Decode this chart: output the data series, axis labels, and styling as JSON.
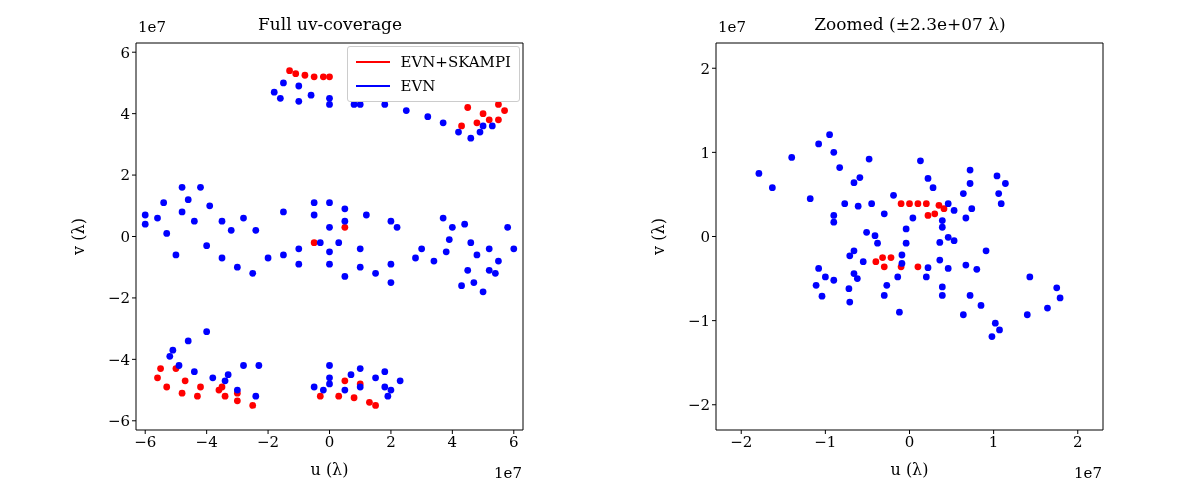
{
  "chart_data": [
    {
      "type": "scatter",
      "title": "Full uv-coverage",
      "xlabel": "u (λ)",
      "ylabel": "v (λ)",
      "annotations": [
        "1e7",
        "1e7"
      ],
      "legend": "top right",
      "marker": "circle",
      "xlim": [
        -6.3,
        6.3
      ],
      "ylim": [
        -6.3,
        6.3
      ],
      "xticks": [
        {
          "value": -6,
          "label": "−6"
        },
        {
          "value": -4,
          "label": "−4"
        },
        {
          "value": -2,
          "label": "−2"
        },
        0,
        2,
        4,
        6
      ],
      "yticks": [
        {
          "value": -6,
          "label": "−6"
        },
        {
          "value": -4,
          "label": "−4"
        },
        {
          "value": -2,
          "label": "−2"
        },
        0,
        2,
        4,
        6
      ],
      "series": [
        {
          "name": "EVN+SKAMPI",
          "color": "#ff0000",
          "x": [
            -1.3,
            -1.1,
            -0.8,
            -0.5,
            -0.2,
            0,
            4.5,
            5.0,
            4.8,
            4.3,
            5.5,
            5.7,
            5.5,
            5.2,
            -5.5,
            -5.6,
            -5.3,
            -4.8,
            -4.3,
            -5.0,
            -4.7,
            -4.2,
            -3.6,
            -3.0,
            -3.5,
            -3.4,
            -3.0,
            -2.5,
            -0.3,
            0.3,
            0.8,
            1.3,
            1.5,
            0.5,
            1.0,
            -0.5,
            0.5
          ],
          "values": [
            5.4,
            5.3,
            5.25,
            5.2,
            5.2,
            5.2,
            4.2,
            4.0,
            3.7,
            3.6,
            4.3,
            4.1,
            3.8,
            3.8,
            -4.3,
            -4.6,
            -4.9,
            -5.1,
            -5.2,
            -4.3,
            -4.7,
            -4.9,
            -5.0,
            -5.1,
            -4.9,
            -5.2,
            -5.35,
            -5.5,
            -5.2,
            -5.2,
            -5.25,
            -5.4,
            -5.5,
            -4.7,
            -4.8,
            -0.2,
            0.3
          ]
        },
        {
          "name": "EVN",
          "color": "#0000ff",
          "x": [
            -1.8,
            -1.6,
            -1.0,
            0,
            1.0,
            -1.5,
            -1.0,
            -0.6,
            0,
            0.8,
            1.8,
            2.5,
            3.2,
            3.7,
            4.2,
            4.6,
            4.9,
            5.3,
            5.0,
            -6,
            -6,
            -5.4,
            -5.6,
            -5.3,
            -5.0,
            -4.8,
            -4.6,
            -4.8,
            -4.4,
            -4.2,
            -3.9,
            -4.0,
            -3.5,
            -3.5,
            -3.2,
            -2.8,
            -2.4,
            -3,
            -2.5,
            -1.5,
            -0.5,
            0.5,
            1.2,
            2.0,
            2.2,
            -0.5,
            0,
            0.5,
            -0.3,
            0.3,
            0,
            0,
            -1.5,
            -2,
            -1.0,
            0,
            1.0,
            2,
            2.8,
            3,
            -1,
            1,
            0.5,
            1.5,
            2.0,
            3.4,
            3.8,
            3.7,
            4.0,
            3.9,
            4.4,
            4.6,
            4.5,
            4.8,
            4.7,
            4.3,
            5.2,
            5.5,
            5.4,
            5.8,
            6.0,
            5.0,
            5.2,
            -4.0,
            -4.6,
            -5.1,
            -5.2,
            -4.9,
            -4.4,
            -3.8,
            -2.3,
            -2.8,
            -3.3,
            -3.4,
            -3.0,
            -2.4,
            0,
            1,
            1.8,
            2.3,
            1.8,
            -0.5,
            0,
            1,
            0,
            0.7,
            1.5,
            2.0,
            1.9,
            -0.2,
            0.5
          ],
          "values": [
            4.7,
            4.5,
            4.4,
            4.3,
            4.3,
            5.0,
            4.9,
            4.6,
            4.5,
            4.3,
            4.3,
            4.1,
            3.9,
            3.7,
            3.4,
            3.2,
            3.4,
            3.6,
            3.6,
            0.7,
            0.4,
            1.1,
            0.6,
            0.1,
            -0.6,
            1.6,
            1.2,
            0.8,
            0.5,
            1.6,
            1.0,
            -0.3,
            -0.7,
            0.5,
            0.2,
            0.6,
            0.2,
            -1.0,
            -1.2,
            0.8,
            0.7,
            0.5,
            0.7,
            0.5,
            0.3,
            1.1,
            1.1,
            0.9,
            -0.2,
            -0.2,
            0.3,
            -0.5,
            -0.6,
            -0.7,
            -0.9,
            -0.9,
            -1.0,
            -0.9,
            -0.7,
            -0.4,
            -0.4,
            -0.4,
            -1.3,
            -1.2,
            -1.5,
            -0.8,
            -0.5,
            0.6,
            0.3,
            -0.1,
            0.4,
            -0.2,
            -1.1,
            -0.6,
            -1.5,
            -1.6,
            -0.4,
            -0.8,
            -1.2,
            0.3,
            -0.4,
            -1.8,
            -1.1,
            -3.1,
            -3.4,
            -3.7,
            -3.9,
            -4.2,
            -4.4,
            -4.6,
            -4.2,
            -4.2,
            -4.5,
            -4.7,
            -5.0,
            -5.2,
            -4.2,
            -4.3,
            -4.4,
            -4.7,
            -4.9,
            -4.9,
            -4.8,
            -4.9,
            -4.6,
            -4.5,
            -4.6,
            -5.0,
            -5.2,
            -5.0,
            -5.0
          ]
        }
      ]
    },
    {
      "type": "scatter",
      "title": "Zoomed (±2.3e+07 λ)",
      "xlabel": "u (λ)",
      "ylabel": "v (λ)",
      "annotations": [
        "1e7",
        "1e7"
      ],
      "marker": "circle",
      "xlim": [
        -2.3,
        2.3
      ],
      "ylim": [
        -2.3,
        2.3
      ],
      "xticks": [
        {
          "value": -2,
          "label": "−2"
        },
        {
          "value": -1,
          "label": "−1"
        },
        0,
        1,
        2
      ],
      "yticks": [
        {
          "value": -2,
          "label": "−2"
        },
        {
          "value": -1,
          "label": "−1"
        },
        0,
        1,
        2
      ],
      "series": [
        {
          "color": "#ff0000",
          "x": [
            -0.1,
            0,
            0.1,
            0.2,
            0.22,
            0.3,
            0.41,
            0.35,
            -0.4,
            -0.32,
            -0.22,
            -0.3,
            -0.1,
            0.1
          ],
          "values": [
            0.39,
            0.39,
            0.39,
            0.39,
            0.25,
            0.27,
            0.33,
            0.37,
            -0.3,
            -0.25,
            -0.25,
            -0.36,
            -0.36,
            -0.36
          ]
        },
        {
          "color": "#0000ff",
          "x": [
            -0.95,
            -1.08,
            -0.9,
            -0.48,
            0.13,
            -1.4,
            -1.79,
            -1.63,
            -1.18,
            -0.77,
            -0.83,
            -0.59,
            0.22,
            0.72,
            -0.66,
            0.28,
            0.72,
            -0.19,
            0.64,
            1.04,
            1.14,
            1.06,
            0.74,
            1.09,
            0.53,
            0.67,
            0.39,
            -0.61,
            -0.9,
            -0.9,
            -0.51,
            -0.45,
            -0.3,
            0.04,
            0.46,
            -0.04,
            -0.04,
            0.39,
            0.46,
            0.36,
            -0.41,
            -0.38,
            0.53,
            0.91,
            0.67,
            -0.66,
            -0.71,
            -0.55,
            -1.08,
            -1.0,
            -0.66,
            -0.09,
            0.36,
            0.46,
            -0.09,
            0.22,
            0.8,
            1.43,
            1.75,
            1.79,
            1.64,
            1.4,
            -1.11,
            -1.04,
            -0.9,
            -0.62,
            -0.72,
            -0.14,
            0.2,
            -0.27,
            0.39,
            0.72,
            -0.71,
            -0.3,
            0.39,
            0.85,
            -0.12,
            0.64,
            1.02,
            1.07,
            0.98
          ],
          "values": [
            1.21,
            1.1,
            1.0,
            0.92,
            0.9,
            0.94,
            0.75,
            0.58,
            0.45,
            0.39,
            0.82,
            0.7,
            0.69,
            0.79,
            0.64,
            0.58,
            0.63,
            0.49,
            0.51,
            0.72,
            0.63,
            0.51,
            0.33,
            0.39,
            0.31,
            0.22,
            0.19,
            0.36,
            0.25,
            0.17,
            0.05,
            0.39,
            0.27,
            0.22,
            0.39,
            0.09,
            -0.08,
            0.11,
            -0.01,
            -0.07,
            0.01,
            -0.08,
            -0.05,
            -0.17,
            -0.34,
            -0.17,
            -0.23,
            -0.3,
            -0.38,
            -0.48,
            -0.44,
            -0.22,
            -0.28,
            -0.38,
            -0.32,
            -0.37,
            -0.39,
            -0.48,
            -0.61,
            -0.73,
            -0.85,
            -0.93,
            -0.58,
            -0.71,
            -0.52,
            -0.5,
            -0.62,
            -0.48,
            -0.48,
            -0.58,
            -0.6,
            -0.7,
            -0.78,
            -0.7,
            -0.7,
            -0.82,
            -0.9,
            -0.93,
            -1.03,
            -1.11,
            -1.19
          ]
        }
      ]
    }
  ]
}
